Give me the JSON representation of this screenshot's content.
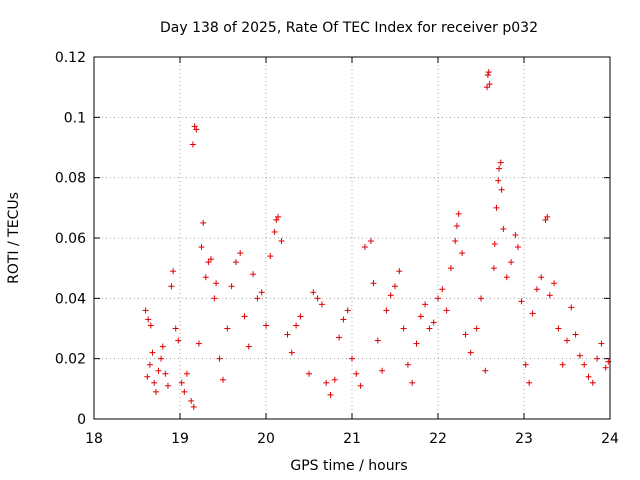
{
  "chart_data": {
    "type": "scatter",
    "title": "Day 138 of 2025, Rate Of TEC Index for receiver p032",
    "xlabel": "GPS time / hours",
    "ylabel": "ROTI / TECUs",
    "xlim": [
      18,
      24
    ],
    "ylim": [
      0,
      0.12
    ],
    "xticks": [
      "18",
      "19",
      "20",
      "21",
      "22",
      "23",
      "24"
    ],
    "yticks": [
      "0",
      "0.02",
      "0.04",
      "0.06",
      "0.08",
      "0.1",
      "0.12"
    ],
    "grid": true,
    "marker": "+",
    "color": "#e00000",
    "series": [
      {
        "name": "ROTI",
        "points": [
          [
            18.6,
            0.036
          ],
          [
            18.63,
            0.033
          ],
          [
            18.66,
            0.031
          ],
          [
            18.62,
            0.014
          ],
          [
            18.65,
            0.018
          ],
          [
            18.68,
            0.022
          ],
          [
            18.7,
            0.012
          ],
          [
            18.72,
            0.009
          ],
          [
            18.75,
            0.016
          ],
          [
            18.78,
            0.02
          ],
          [
            18.8,
            0.024
          ],
          [
            18.83,
            0.015
          ],
          [
            18.86,
            0.011
          ],
          [
            18.9,
            0.044
          ],
          [
            18.92,
            0.049
          ],
          [
            18.95,
            0.03
          ],
          [
            18.98,
            0.026
          ],
          [
            19.02,
            0.012
          ],
          [
            19.05,
            0.009
          ],
          [
            19.08,
            0.015
          ],
          [
            19.15,
            0.091
          ],
          [
            19.17,
            0.097
          ],
          [
            19.19,
            0.096
          ],
          [
            19.13,
            0.006
          ],
          [
            19.16,
            0.004
          ],
          [
            19.22,
            0.025
          ],
          [
            19.25,
            0.057
          ],
          [
            19.27,
            0.065
          ],
          [
            19.3,
            0.047
          ],
          [
            19.33,
            0.052
          ],
          [
            19.36,
            0.053
          ],
          [
            19.4,
            0.04
          ],
          [
            19.42,
            0.045
          ],
          [
            19.46,
            0.02
          ],
          [
            19.5,
            0.013
          ],
          [
            19.55,
            0.03
          ],
          [
            19.6,
            0.044
          ],
          [
            19.65,
            0.052
          ],
          [
            19.7,
            0.055
          ],
          [
            19.75,
            0.034
          ],
          [
            19.8,
            0.024
          ],
          [
            19.85,
            0.048
          ],
          [
            19.9,
            0.04
          ],
          [
            19.95,
            0.042
          ],
          [
            20.0,
            0.031
          ],
          [
            20.05,
            0.054
          ],
          [
            20.1,
            0.062
          ],
          [
            20.12,
            0.066
          ],
          [
            20.14,
            0.067
          ],
          [
            20.18,
            0.059
          ],
          [
            20.25,
            0.028
          ],
          [
            20.3,
            0.022
          ],
          [
            20.35,
            0.031
          ],
          [
            20.4,
            0.034
          ],
          [
            20.5,
            0.015
          ],
          [
            20.55,
            0.042
          ],
          [
            20.6,
            0.04
          ],
          [
            20.65,
            0.038
          ],
          [
            20.7,
            0.012
          ],
          [
            20.75,
            0.008
          ],
          [
            20.8,
            0.013
          ],
          [
            20.85,
            0.027
          ],
          [
            20.9,
            0.033
          ],
          [
            20.95,
            0.036
          ],
          [
            21.0,
            0.02
          ],
          [
            21.05,
            0.015
          ],
          [
            21.1,
            0.011
          ],
          [
            21.15,
            0.057
          ],
          [
            21.22,
            0.059
          ],
          [
            21.25,
            0.045
          ],
          [
            21.3,
            0.026
          ],
          [
            21.35,
            0.016
          ],
          [
            21.4,
            0.036
          ],
          [
            21.45,
            0.041
          ],
          [
            21.5,
            0.044
          ],
          [
            21.55,
            0.049
          ],
          [
            21.6,
            0.03
          ],
          [
            21.65,
            0.018
          ],
          [
            21.7,
            0.012
          ],
          [
            21.75,
            0.025
          ],
          [
            21.8,
            0.034
          ],
          [
            21.85,
            0.038
          ],
          [
            21.9,
            0.03
          ],
          [
            21.95,
            0.032
          ],
          [
            22.0,
            0.04
          ],
          [
            22.05,
            0.043
          ],
          [
            22.1,
            0.036
          ],
          [
            22.15,
            0.05
          ],
          [
            22.2,
            0.059
          ],
          [
            22.22,
            0.064
          ],
          [
            22.24,
            0.068
          ],
          [
            22.28,
            0.055
          ],
          [
            22.32,
            0.028
          ],
          [
            22.38,
            0.022
          ],
          [
            22.45,
            0.03
          ],
          [
            22.5,
            0.04
          ],
          [
            22.55,
            0.016
          ],
          [
            22.57,
            0.11
          ],
          [
            22.58,
            0.114
          ],
          [
            22.59,
            0.115
          ],
          [
            22.6,
            0.111
          ],
          [
            22.65,
            0.05
          ],
          [
            22.66,
            0.058
          ],
          [
            22.68,
            0.07
          ],
          [
            22.7,
            0.079
          ],
          [
            22.71,
            0.083
          ],
          [
            22.73,
            0.085
          ],
          [
            22.74,
            0.076
          ],
          [
            22.76,
            0.063
          ],
          [
            22.8,
            0.047
          ],
          [
            22.85,
            0.052
          ],
          [
            22.9,
            0.061
          ],
          [
            22.93,
            0.057
          ],
          [
            22.97,
            0.039
          ],
          [
            23.02,
            0.018
          ],
          [
            23.06,
            0.012
          ],
          [
            23.1,
            0.035
          ],
          [
            23.15,
            0.043
          ],
          [
            23.2,
            0.047
          ],
          [
            23.25,
            0.066
          ],
          [
            23.27,
            0.067
          ],
          [
            23.3,
            0.041
          ],
          [
            23.35,
            0.045
          ],
          [
            23.4,
            0.03
          ],
          [
            23.45,
            0.018
          ],
          [
            23.5,
            0.026
          ],
          [
            23.55,
            0.037
          ],
          [
            23.6,
            0.028
          ],
          [
            23.65,
            0.021
          ],
          [
            23.7,
            0.018
          ],
          [
            23.75,
            0.014
          ],
          [
            23.8,
            0.012
          ],
          [
            23.85,
            0.02
          ],
          [
            23.9,
            0.025
          ],
          [
            23.95,
            0.017
          ],
          [
            23.98,
            0.019
          ]
        ]
      }
    ]
  }
}
